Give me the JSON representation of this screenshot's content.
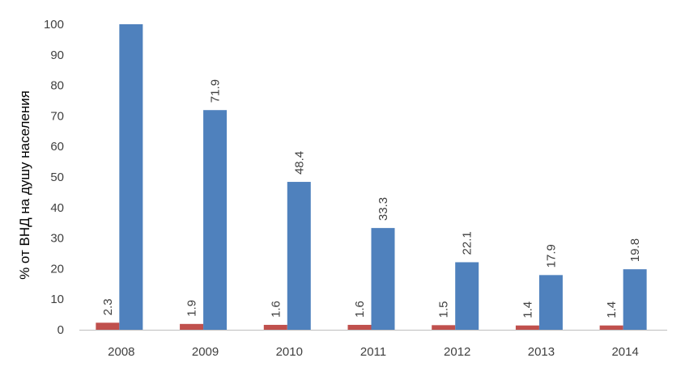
{
  "chart_data": {
    "type": "bar",
    "title": "",
    "xlabel": "",
    "ylabel": "% от ВНД на душу населения",
    "ylim": [
      0,
      100
    ],
    "yticks": [
      0,
      10,
      20,
      30,
      40,
      50,
      60,
      70,
      80,
      90,
      100
    ],
    "grid": false,
    "legend": "none",
    "categories": [
      "2008",
      "2009",
      "2010",
      "2011",
      "2012",
      "2013",
      "2014"
    ],
    "series": [
      {
        "color": "#c0504d",
        "values": [
          2.3,
          1.9,
          1.6,
          1.6,
          1.5,
          1.4,
          1.4
        ],
        "labels": [
          "2.3",
          "1.9",
          "1.6",
          "1.6",
          "1.5",
          "1.4",
          "1.4"
        ]
      },
      {
        "color": "#4f81bd",
        "values": [
          100,
          71.9,
          48.4,
          33.3,
          22.1,
          17.9,
          19.8
        ],
        "labels": [
          "",
          "71.9",
          "48.4",
          "33.3",
          "22.1",
          "17.9",
          "19.8"
        ]
      }
    ]
  }
}
